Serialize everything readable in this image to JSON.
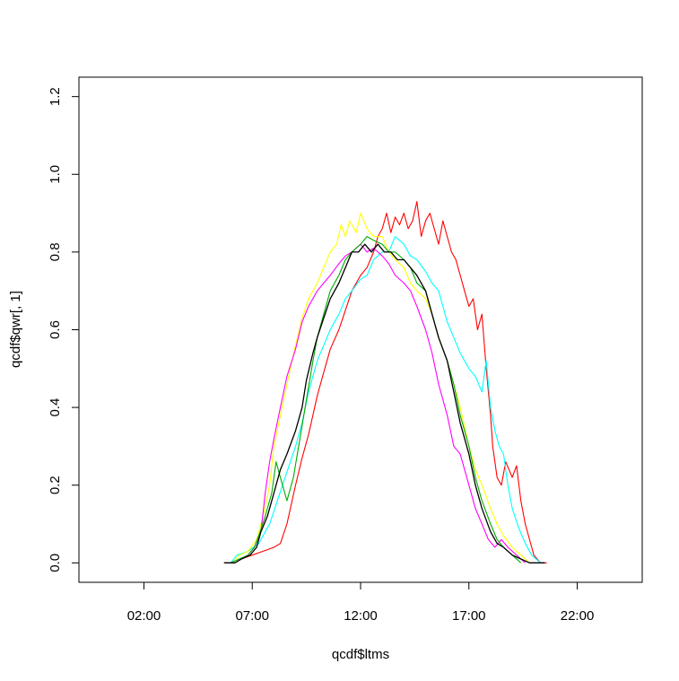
{
  "chart_data": {
    "type": "line",
    "title": "",
    "xlabel": "qcdf$ltms",
    "ylabel": "qcdf$qwr[, 1]",
    "xlim_hours": [
      -1.0,
      25.0
    ],
    "ylim": [
      -0.05,
      1.25
    ],
    "x_ticks": [
      {
        "hour": 2,
        "label": "02:00"
      },
      {
        "hour": 7,
        "label": "07:00"
      },
      {
        "hour": 12,
        "label": "12:00"
      },
      {
        "hour": 17,
        "label": "17:00"
      },
      {
        "hour": 22,
        "label": "22:00"
      }
    ],
    "y_ticks": [
      {
        "value": 0.0,
        "label": "0.0"
      },
      {
        "value": 0.2,
        "label": "0.2"
      },
      {
        "value": 0.4,
        "label": "0.4"
      },
      {
        "value": 0.6,
        "label": "0.6"
      },
      {
        "value": 0.8,
        "label": "0.8"
      },
      {
        "value": 1.0,
        "label": "1.0"
      },
      {
        "value": 1.2,
        "label": "1.2"
      }
    ],
    "grid": false,
    "legend": "none",
    "series": [
      {
        "color": "#ff0000",
        "points": [
          [
            5.7,
            0.0
          ],
          [
            6.2,
            0.0
          ],
          [
            6.5,
            0.01
          ],
          [
            7.0,
            0.02
          ],
          [
            7.5,
            0.03
          ],
          [
            8.0,
            0.04
          ],
          [
            8.3,
            0.05
          ],
          [
            8.6,
            0.1
          ],
          [
            9.0,
            0.2
          ],
          [
            9.3,
            0.27
          ],
          [
            9.6,
            0.33
          ],
          [
            10.0,
            0.43
          ],
          [
            10.3,
            0.49
          ],
          [
            10.6,
            0.55
          ],
          [
            11.0,
            0.6
          ],
          [
            11.3,
            0.65
          ],
          [
            11.6,
            0.7
          ],
          [
            12.0,
            0.74
          ],
          [
            12.3,
            0.76
          ],
          [
            12.6,
            0.8
          ],
          [
            12.8,
            0.84
          ],
          [
            13.0,
            0.86
          ],
          [
            13.2,
            0.9
          ],
          [
            13.4,
            0.85
          ],
          [
            13.6,
            0.89
          ],
          [
            13.8,
            0.87
          ],
          [
            14.0,
            0.9
          ],
          [
            14.2,
            0.86
          ],
          [
            14.4,
            0.88
          ],
          [
            14.6,
            0.93
          ],
          [
            14.8,
            0.84
          ],
          [
            15.0,
            0.88
          ],
          [
            15.2,
            0.9
          ],
          [
            15.4,
            0.86
          ],
          [
            15.6,
            0.82
          ],
          [
            15.8,
            0.88
          ],
          [
            16.0,
            0.84
          ],
          [
            16.2,
            0.8
          ],
          [
            16.4,
            0.78
          ],
          [
            16.6,
            0.74
          ],
          [
            16.8,
            0.7
          ],
          [
            17.0,
            0.66
          ],
          [
            17.2,
            0.68
          ],
          [
            17.4,
            0.6
          ],
          [
            17.6,
            0.64
          ],
          [
            17.8,
            0.5
          ],
          [
            18.0,
            0.38
          ],
          [
            18.1,
            0.3
          ],
          [
            18.3,
            0.22
          ],
          [
            18.5,
            0.2
          ],
          [
            18.7,
            0.26
          ],
          [
            19.0,
            0.22
          ],
          [
            19.2,
            0.25
          ],
          [
            19.4,
            0.16
          ],
          [
            19.6,
            0.1
          ],
          [
            19.8,
            0.06
          ],
          [
            20.0,
            0.02
          ],
          [
            20.3,
            0.0
          ],
          [
            20.6,
            0.0
          ]
        ]
      },
      {
        "color": "#00ffff",
        "points": [
          [
            6.0,
            0.0
          ],
          [
            6.3,
            0.02
          ],
          [
            6.8,
            0.03
          ],
          [
            7.3,
            0.05
          ],
          [
            7.6,
            0.08
          ],
          [
            7.8,
            0.1
          ],
          [
            8.1,
            0.15
          ],
          [
            8.4,
            0.2
          ],
          [
            8.7,
            0.25
          ],
          [
            9.0,
            0.3
          ],
          [
            9.3,
            0.36
          ],
          [
            9.6,
            0.44
          ],
          [
            10.0,
            0.52
          ],
          [
            10.3,
            0.56
          ],
          [
            10.6,
            0.6
          ],
          [
            11.0,
            0.64
          ],
          [
            11.3,
            0.68
          ],
          [
            11.6,
            0.7
          ],
          [
            12.0,
            0.73
          ],
          [
            12.3,
            0.74
          ],
          [
            12.6,
            0.78
          ],
          [
            13.0,
            0.8
          ],
          [
            13.3,
            0.8
          ],
          [
            13.6,
            0.84
          ],
          [
            14.0,
            0.82
          ],
          [
            14.3,
            0.79
          ],
          [
            14.6,
            0.78
          ],
          [
            15.0,
            0.75
          ],
          [
            15.3,
            0.72
          ],
          [
            15.6,
            0.7
          ],
          [
            16.0,
            0.62
          ],
          [
            16.3,
            0.58
          ],
          [
            16.6,
            0.54
          ],
          [
            17.0,
            0.5
          ],
          [
            17.3,
            0.48
          ],
          [
            17.6,
            0.44
          ],
          [
            17.8,
            0.52
          ],
          [
            18.0,
            0.4
          ],
          [
            18.2,
            0.34
          ],
          [
            18.4,
            0.3
          ],
          [
            18.6,
            0.28
          ],
          [
            18.8,
            0.2
          ],
          [
            19.0,
            0.14
          ],
          [
            19.3,
            0.09
          ],
          [
            19.6,
            0.05
          ],
          [
            19.9,
            0.02
          ],
          [
            20.3,
            0.0
          ]
        ]
      },
      {
        "color": "#ffff00",
        "points": [
          [
            6.1,
            0.0
          ],
          [
            6.4,
            0.02
          ],
          [
            6.8,
            0.03
          ],
          [
            7.2,
            0.06
          ],
          [
            7.5,
            0.12
          ],
          [
            7.8,
            0.2
          ],
          [
            8.0,
            0.3
          ],
          [
            8.3,
            0.38
          ],
          [
            8.6,
            0.46
          ],
          [
            9.0,
            0.56
          ],
          [
            9.3,
            0.63
          ],
          [
            9.6,
            0.68
          ],
          [
            10.0,
            0.72
          ],
          [
            10.3,
            0.76
          ],
          [
            10.6,
            0.8
          ],
          [
            10.9,
            0.82
          ],
          [
            11.1,
            0.87
          ],
          [
            11.3,
            0.84
          ],
          [
            11.5,
            0.88
          ],
          [
            11.8,
            0.85
          ],
          [
            12.0,
            0.9
          ],
          [
            12.3,
            0.86
          ],
          [
            12.6,
            0.84
          ],
          [
            13.0,
            0.84
          ],
          [
            13.3,
            0.8
          ],
          [
            13.6,
            0.78
          ],
          [
            14.0,
            0.76
          ],
          [
            14.3,
            0.72
          ],
          [
            14.6,
            0.7
          ],
          [
            15.0,
            0.68
          ],
          [
            15.3,
            0.64
          ],
          [
            15.6,
            0.58
          ],
          [
            16.0,
            0.52
          ],
          [
            16.3,
            0.46
          ],
          [
            16.6,
            0.4
          ],
          [
            17.0,
            0.3
          ],
          [
            17.3,
            0.24
          ],
          [
            17.6,
            0.2
          ],
          [
            18.0,
            0.14
          ],
          [
            18.3,
            0.1
          ],
          [
            18.6,
            0.07
          ],
          [
            19.0,
            0.04
          ],
          [
            19.4,
            0.02
          ],
          [
            19.8,
            0.0
          ]
        ]
      },
      {
        "color": "#ff00ff",
        "points": [
          [
            6.2,
            0.0
          ],
          [
            6.5,
            0.01
          ],
          [
            6.8,
            0.02
          ],
          [
            7.1,
            0.04
          ],
          [
            7.4,
            0.08
          ],
          [
            7.6,
            0.18
          ],
          [
            7.8,
            0.26
          ],
          [
            8.0,
            0.32
          ],
          [
            8.3,
            0.4
          ],
          [
            8.6,
            0.48
          ],
          [
            9.0,
            0.55
          ],
          [
            9.3,
            0.62
          ],
          [
            9.6,
            0.66
          ],
          [
            10.0,
            0.7
          ],
          [
            10.3,
            0.72
          ],
          [
            10.6,
            0.74
          ],
          [
            11.0,
            0.77
          ],
          [
            11.3,
            0.79
          ],
          [
            11.6,
            0.8
          ],
          [
            12.0,
            0.82
          ],
          [
            12.3,
            0.8
          ],
          [
            12.6,
            0.81
          ],
          [
            13.0,
            0.79
          ],
          [
            13.3,
            0.77
          ],
          [
            13.6,
            0.74
          ],
          [
            14.0,
            0.72
          ],
          [
            14.3,
            0.7
          ],
          [
            14.6,
            0.66
          ],
          [
            15.0,
            0.6
          ],
          [
            15.3,
            0.54
          ],
          [
            15.6,
            0.46
          ],
          [
            16.0,
            0.38
          ],
          [
            16.3,
            0.3
          ],
          [
            16.6,
            0.28
          ],
          [
            17.0,
            0.2
          ],
          [
            17.3,
            0.14
          ],
          [
            17.6,
            0.1
          ],
          [
            17.9,
            0.06
          ],
          [
            18.2,
            0.04
          ],
          [
            18.5,
            0.06
          ],
          [
            18.8,
            0.04
          ],
          [
            19.2,
            0.02
          ],
          [
            19.6,
            0.0
          ]
        ]
      },
      {
        "color": "#00aa00",
        "points": [
          [
            6.0,
            0.0
          ],
          [
            6.4,
            0.01
          ],
          [
            6.8,
            0.02
          ],
          [
            7.1,
            0.04
          ],
          [
            7.3,
            0.07
          ],
          [
            7.6,
            0.12
          ],
          [
            7.9,
            0.18
          ],
          [
            8.1,
            0.26
          ],
          [
            8.3,
            0.22
          ],
          [
            8.6,
            0.16
          ],
          [
            8.9,
            0.22
          ],
          [
            9.2,
            0.32
          ],
          [
            9.5,
            0.42
          ],
          [
            9.8,
            0.52
          ],
          [
            10.0,
            0.58
          ],
          [
            10.3,
            0.64
          ],
          [
            10.6,
            0.7
          ],
          [
            11.0,
            0.74
          ],
          [
            11.3,
            0.78
          ],
          [
            11.6,
            0.8
          ],
          [
            12.0,
            0.82
          ],
          [
            12.3,
            0.84
          ],
          [
            12.6,
            0.83
          ],
          [
            13.0,
            0.82
          ],
          [
            13.3,
            0.8
          ],
          [
            13.6,
            0.8
          ],
          [
            14.0,
            0.78
          ],
          [
            14.3,
            0.76
          ],
          [
            14.6,
            0.72
          ],
          [
            15.0,
            0.7
          ],
          [
            15.3,
            0.64
          ],
          [
            15.6,
            0.58
          ],
          [
            16.0,
            0.52
          ],
          [
            16.3,
            0.46
          ],
          [
            16.6,
            0.38
          ],
          [
            17.0,
            0.3
          ],
          [
            17.3,
            0.22
          ],
          [
            17.6,
            0.16
          ],
          [
            18.0,
            0.1
          ],
          [
            18.3,
            0.06
          ],
          [
            18.6,
            0.04
          ],
          [
            19.0,
            0.02
          ],
          [
            19.4,
            0.0
          ]
        ]
      },
      {
        "color": "#000000",
        "points": [
          [
            5.7,
            0.0
          ],
          [
            6.2,
            0.0
          ],
          [
            6.5,
            0.01
          ],
          [
            6.9,
            0.02
          ],
          [
            7.2,
            0.04
          ],
          [
            7.4,
            0.08
          ],
          [
            7.7,
            0.12
          ],
          [
            8.0,
            0.18
          ],
          [
            8.3,
            0.24
          ],
          [
            8.6,
            0.28
          ],
          [
            9.0,
            0.34
          ],
          [
            9.3,
            0.4
          ],
          [
            9.5,
            0.47
          ],
          [
            9.8,
            0.54
          ],
          [
            10.0,
            0.58
          ],
          [
            10.3,
            0.63
          ],
          [
            10.6,
            0.68
          ],
          [
            11.0,
            0.72
          ],
          [
            11.3,
            0.76
          ],
          [
            11.6,
            0.8
          ],
          [
            11.9,
            0.8
          ],
          [
            12.2,
            0.82
          ],
          [
            12.5,
            0.8
          ],
          [
            12.8,
            0.82
          ],
          [
            13.1,
            0.8
          ],
          [
            13.4,
            0.8
          ],
          [
            13.7,
            0.78
          ],
          [
            14.0,
            0.78
          ],
          [
            14.3,
            0.76
          ],
          [
            14.6,
            0.74
          ],
          [
            15.0,
            0.7
          ],
          [
            15.3,
            0.64
          ],
          [
            15.6,
            0.58
          ],
          [
            16.0,
            0.52
          ],
          [
            16.3,
            0.44
          ],
          [
            16.6,
            0.36
          ],
          [
            17.0,
            0.28
          ],
          [
            17.3,
            0.2
          ],
          [
            17.6,
            0.14
          ],
          [
            18.0,
            0.08
          ],
          [
            18.3,
            0.05
          ],
          [
            18.6,
            0.04
          ],
          [
            19.0,
            0.02
          ],
          [
            19.4,
            0.01
          ],
          [
            19.8,
            0.0
          ],
          [
            20.5,
            0.0
          ]
        ]
      }
    ]
  }
}
